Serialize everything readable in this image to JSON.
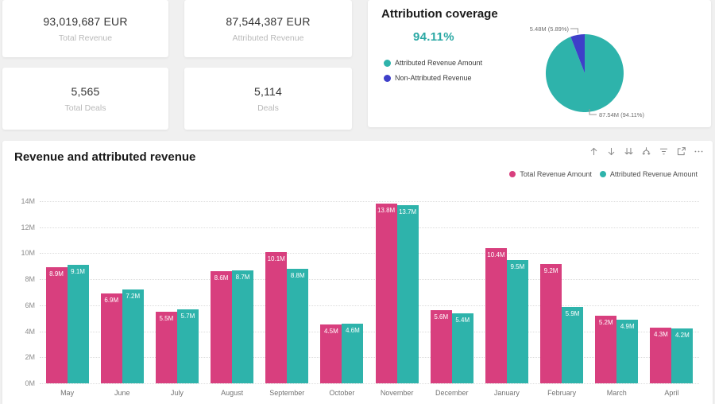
{
  "colors": {
    "pink": "#d83f7e",
    "teal": "#2eb3ab",
    "blue": "#3e3fc9",
    "accent_pct": "#2aa8a4"
  },
  "kpis": [
    {
      "value": "93,019,687 EUR",
      "label": "Total Revenue"
    },
    {
      "value": "87,544,387 EUR",
      "label": "Attributed Revenue"
    },
    {
      "value": "5,565",
      "label": "Total Deals"
    },
    {
      "value": "5,114",
      "label": "Deals"
    }
  ],
  "attribution": {
    "title": "Attribution coverage",
    "coverage_value": "94.11%"
  },
  "revenue_chart": {
    "toolbar": [
      "drill-up",
      "drill-down",
      "go-to-next-level",
      "expand-all-down-one-level",
      "filters",
      "focus-mode",
      "more-options"
    ]
  },
  "chart_data": [
    {
      "type": "bar",
      "title": "Revenue and attributed revenue",
      "categories": [
        "May",
        "June",
        "July",
        "August",
        "September",
        "October",
        "November",
        "December",
        "January",
        "February",
        "March",
        "April"
      ],
      "series": [
        {
          "name": "Total Revenue Amount",
          "color": "#d83f7e",
          "values": [
            8.9,
            6.9,
            5.5,
            8.6,
            10.1,
            4.5,
            13.8,
            5.6,
            10.4,
            9.2,
            5.2,
            4.3
          ]
        },
        {
          "name": "Attributed Revenue Amount",
          "color": "#2eb3ab",
          "values": [
            9.1,
            7.2,
            5.7,
            8.7,
            8.8,
            4.6,
            13.7,
            5.4,
            9.5,
            5.9,
            4.9,
            4.2
          ]
        }
      ],
      "unit": "M",
      "ylabel": "",
      "xlabel": "",
      "ylim": [
        0,
        14
      ],
      "ytick_step": 2,
      "ytick_labels": [
        "0M",
        "2M",
        "4M",
        "6M",
        "8M",
        "10M",
        "12M",
        "14M"
      ],
      "grid": "dotted-horizontal",
      "legend_position": "top-right"
    },
    {
      "type": "pie",
      "title": "Attribution coverage",
      "slices": [
        {
          "name": "Attributed Revenue Amount",
          "value_m": 87.54,
          "pct": 94.11,
          "value_label": "87.54M (94.11%)",
          "color": "#2eb3ab"
        },
        {
          "name": "Non-Attributed Revenue",
          "value_m": 5.48,
          "pct": 5.89,
          "value_label": "5.48M (5.89%)",
          "color": "#3e3fc9"
        }
      ],
      "legend_position": "left"
    }
  ]
}
